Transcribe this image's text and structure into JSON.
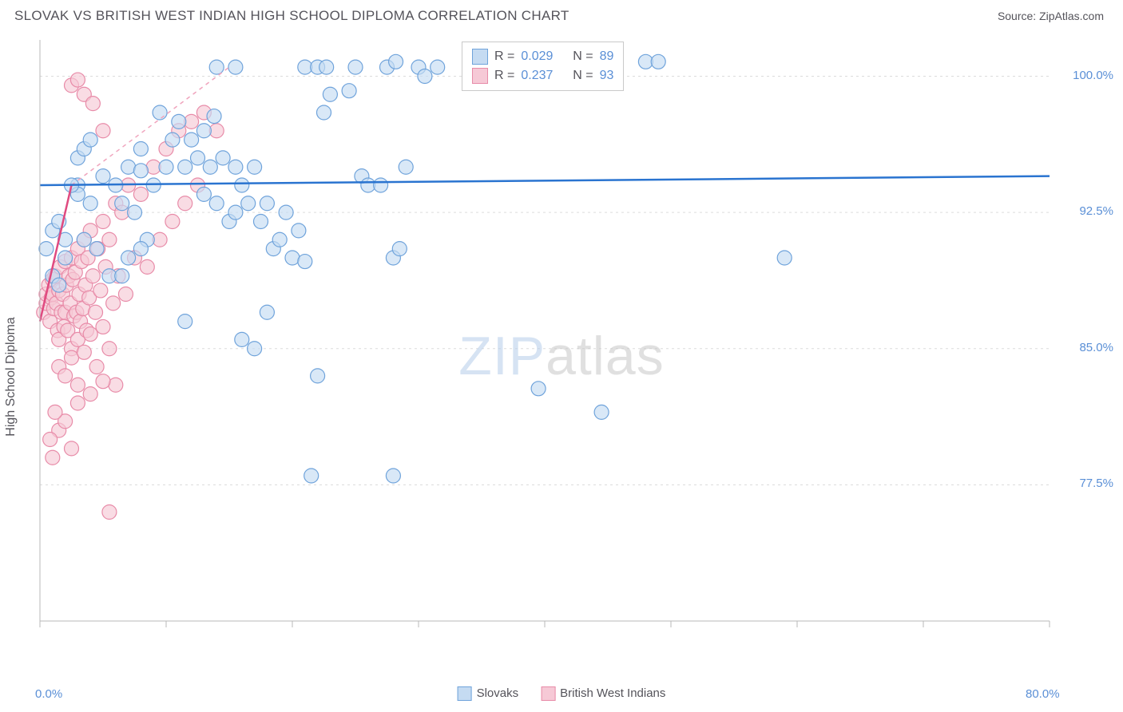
{
  "header": {
    "title": "SLOVAK VS BRITISH WEST INDIAN HIGH SCHOOL DIPLOMA CORRELATION CHART",
    "source": "Source: ZipAtlas.com"
  },
  "axes": {
    "ylabel": "High School Diploma",
    "xlim": [
      0,
      80
    ],
    "ylim": [
      70,
      102
    ],
    "yticks": [
      77.5,
      85.0,
      92.5,
      100.0
    ],
    "ytick_labels": [
      "77.5%",
      "85.0%",
      "92.5%",
      "100.0%"
    ],
    "xticks": [
      0,
      10,
      20,
      30,
      40,
      50,
      60,
      70,
      80
    ],
    "xtick_labels": [
      "0.0%",
      "",
      "",
      "",
      "",
      "",
      "",
      "",
      "80.0%"
    ],
    "grid_color": "#dcdcdc",
    "axis_color": "#b8b8b8",
    "background": "#ffffff",
    "tick_label_color": "#5a8fd6",
    "axis_label_color": "#54535a",
    "label_fontsize": 16,
    "tick_fontsize": 15
  },
  "series": {
    "slovaks": {
      "label": "Slovaks",
      "fill": "#c5dbf2",
      "stroke": "#6fa3db",
      "marker_radius": 9,
      "fill_opacity": 0.65,
      "trend": {
        "x1": 0,
        "y1": 94.0,
        "x2": 80,
        "y2": 94.5,
        "color": "#2a74d0",
        "width": 2.5
      },
      "trend_ext": {
        "x1": 0,
        "y1": 94.0,
        "x2": 80,
        "y2": 94.5,
        "color": "#9fc3ea",
        "dash": "5,5"
      },
      "stats": {
        "R": "0.029",
        "N": "89"
      },
      "points": [
        [
          14,
          100.5
        ],
        [
          15.5,
          100.5
        ],
        [
          21,
          100.5
        ],
        [
          22,
          100.5
        ],
        [
          22.7,
          100.5
        ],
        [
          25,
          100.5
        ],
        [
          27.5,
          100.5
        ],
        [
          28.2,
          100.8
        ],
        [
          30,
          100.5
        ],
        [
          30.5,
          100
        ],
        [
          31.5,
          100.5
        ],
        [
          35,
          100.5
        ],
        [
          48,
          100.8
        ],
        [
          49,
          100.8
        ],
        [
          3,
          94
        ],
        [
          3,
          93.5
        ],
        [
          4,
          93
        ],
        [
          5,
          94.5
        ],
        [
          6,
          94
        ],
        [
          6.5,
          93
        ],
        [
          7,
          95
        ],
        [
          7.5,
          92.5
        ],
        [
          8,
          94.8
        ],
        [
          8,
          96
        ],
        [
          8.5,
          91
        ],
        [
          9,
          94
        ],
        [
          9.5,
          98
        ],
        [
          10,
          95
        ],
        [
          10.5,
          96.5
        ],
        [
          11,
          97.5
        ],
        [
          11.5,
          95
        ],
        [
          12,
          96.5
        ],
        [
          12.5,
          95.5
        ],
        [
          13,
          97
        ],
        [
          13,
          93.5
        ],
        [
          13.5,
          95
        ],
        [
          13.8,
          97.8
        ],
        [
          14,
          93
        ],
        [
          14.5,
          95.5
        ],
        [
          15,
          92
        ],
        [
          15.5,
          95
        ],
        [
          15.5,
          92.5
        ],
        [
          16,
          94
        ],
        [
          16.5,
          93
        ],
        [
          17,
          95
        ],
        [
          17.5,
          92
        ],
        [
          18,
          93
        ],
        [
          18.5,
          90.5
        ],
        [
          19,
          91
        ],
        [
          19.5,
          92.5
        ],
        [
          20,
          90
        ],
        [
          20.5,
          91.5
        ],
        [
          21,
          89.8
        ],
        [
          22.5,
          98
        ],
        [
          23,
          99
        ],
        [
          24.5,
          99.2
        ],
        [
          25.5,
          94.5
        ],
        [
          26,
          94
        ],
        [
          27,
          94
        ],
        [
          28,
          90
        ],
        [
          28.5,
          90.5
        ],
        [
          11.5,
          86.5
        ],
        [
          16,
          85.5
        ],
        [
          17,
          85
        ],
        [
          18,
          87
        ],
        [
          21.5,
          78
        ],
        [
          28,
          78
        ],
        [
          22,
          83.5
        ],
        [
          39.5,
          82.8
        ],
        [
          44.5,
          81.5
        ],
        [
          59,
          90
        ],
        [
          3.5,
          91
        ],
        [
          4.5,
          90.5
        ],
        [
          5.5,
          89
        ],
        [
          6.5,
          89
        ],
        [
          7,
          90
        ],
        [
          8,
          90.5
        ],
        [
          1,
          91.5
        ],
        [
          1.5,
          92
        ],
        [
          2,
          90
        ],
        [
          2.5,
          94
        ],
        [
          3,
          95.5
        ],
        [
          3.5,
          96
        ],
        [
          4,
          96.5
        ],
        [
          2,
          91
        ],
        [
          0.5,
          90.5
        ],
        [
          1,
          89
        ],
        [
          1.5,
          88.5
        ],
        [
          29,
          95
        ]
      ]
    },
    "bwi": {
      "label": "British West Indians",
      "fill": "#f6c9d6",
      "stroke": "#e88ba8",
      "marker_radius": 9,
      "fill_opacity": 0.65,
      "trend": {
        "x1": 0,
        "y1": 86.5,
        "x2": 2.5,
        "y2": 94.0,
        "color": "#e04a80",
        "width": 2.5
      },
      "trend_ext": {
        "x1": 2.5,
        "y1": 94.0,
        "x2": 15,
        "y2": 100.5,
        "color": "#f0a4bd",
        "dash": "5,5"
      },
      "stats": {
        "R": "0.237",
        "N": "93"
      },
      "points": [
        [
          0.3,
          87
        ],
        [
          0.5,
          87.5
        ],
        [
          0.5,
          88
        ],
        [
          0.7,
          88.5
        ],
        [
          0.8,
          86.5
        ],
        [
          0.9,
          87.8
        ],
        [
          1,
          88
        ],
        [
          1,
          88.8
        ],
        [
          1.1,
          87.2
        ],
        [
          1.2,
          89
        ],
        [
          1.3,
          87.5
        ],
        [
          1.4,
          86
        ],
        [
          1.5,
          88.2
        ],
        [
          1.5,
          85.5
        ],
        [
          1.6,
          89.5
        ],
        [
          1.7,
          87
        ],
        [
          1.8,
          88
        ],
        [
          1.9,
          86.2
        ],
        [
          2,
          89.8
        ],
        [
          2,
          87
        ],
        [
          2.1,
          88.5
        ],
        [
          2.2,
          86
        ],
        [
          2.3,
          89
        ],
        [
          2.4,
          87.5
        ],
        [
          2.5,
          90
        ],
        [
          2.5,
          85
        ],
        [
          2.6,
          88.8
        ],
        [
          2.7,
          86.8
        ],
        [
          2.8,
          89.2
        ],
        [
          2.9,
          87
        ],
        [
          3,
          90.5
        ],
        [
          3,
          85.5
        ],
        [
          3.1,
          88
        ],
        [
          3.2,
          86.5
        ],
        [
          3.3,
          89.8
        ],
        [
          3.4,
          87.2
        ],
        [
          3.5,
          91
        ],
        [
          3.6,
          88.5
        ],
        [
          3.7,
          86
        ],
        [
          3.8,
          90
        ],
        [
          3.9,
          87.8
        ],
        [
          4,
          91.5
        ],
        [
          4,
          85.8
        ],
        [
          4.2,
          89
        ],
        [
          4.4,
          87
        ],
        [
          4.6,
          90.5
        ],
        [
          4.8,
          88.2
        ],
        [
          5,
          92
        ],
        [
          5,
          86.2
        ],
        [
          5.2,
          89.5
        ],
        [
          5.5,
          91
        ],
        [
          5.8,
          87.5
        ],
        [
          6,
          93
        ],
        [
          6.2,
          89
        ],
        [
          6.5,
          92.5
        ],
        [
          6.8,
          88
        ],
        [
          7,
          94
        ],
        [
          7.5,
          90
        ],
        [
          8,
          93.5
        ],
        [
          8.5,
          89.5
        ],
        [
          9,
          95
        ],
        [
          9.5,
          91
        ],
        [
          10,
          96
        ],
        [
          10.5,
          92
        ],
        [
          11,
          97
        ],
        [
          11.5,
          93
        ],
        [
          12,
          97.5
        ],
        [
          12.5,
          94
        ],
        [
          13,
          98
        ],
        [
          14,
          97
        ],
        [
          2.5,
          99.5
        ],
        [
          3,
          99.8
        ],
        [
          3.5,
          99
        ],
        [
          4.2,
          98.5
        ],
        [
          5,
          97
        ],
        [
          6,
          83
        ],
        [
          1.5,
          80.5
        ],
        [
          2,
          81
        ],
        [
          2.5,
          79.5
        ],
        [
          3,
          82
        ],
        [
          0.8,
          80
        ],
        [
          1,
          79
        ],
        [
          1.2,
          81.5
        ],
        [
          5.5,
          76
        ],
        [
          1.5,
          84
        ],
        [
          2,
          83.5
        ],
        [
          2.5,
          84.5
        ],
        [
          3,
          83
        ],
        [
          3.5,
          84.8
        ],
        [
          4,
          82.5
        ],
        [
          4.5,
          84
        ],
        [
          5,
          83.2
        ],
        [
          5.5,
          85
        ]
      ]
    }
  },
  "legend_bottom": {
    "items": [
      {
        "label": "Slovaks",
        "fill": "#c5dbf2",
        "stroke": "#6fa3db"
      },
      {
        "label": "British West Indians",
        "fill": "#f6c9d6",
        "stroke": "#e88ba8"
      }
    ]
  },
  "stat_box": {
    "rows": [
      {
        "fill": "#c5dbf2",
        "stroke": "#6fa3db",
        "R": "0.029",
        "N": "89"
      },
      {
        "fill": "#f6c9d6",
        "stroke": "#e88ba8",
        "R": "0.237",
        "N": "93"
      }
    ]
  },
  "watermark": {
    "zip": "ZIP",
    "atlas": "atlas"
  }
}
